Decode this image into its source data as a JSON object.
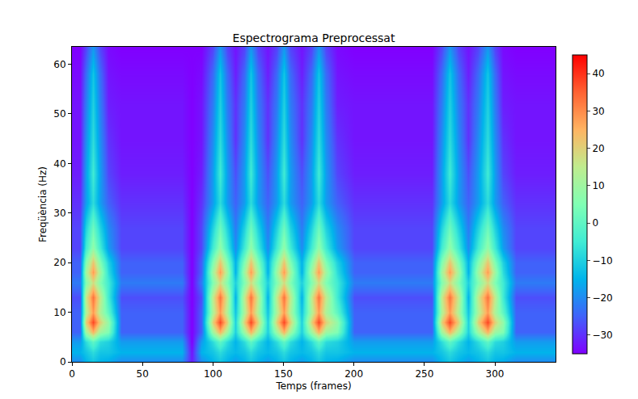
{
  "chart_data": {
    "type": "heatmap",
    "title": "Espectrograma Preprocessat",
    "x_label": "Temps (frames)",
    "y_label": "Freqüència (Hz)",
    "x": [
      0,
      6,
      10,
      15,
      20,
      26,
      35,
      50,
      65,
      78,
      85,
      92,
      100,
      105,
      110,
      116,
      122,
      127,
      132,
      139,
      145,
      150,
      155,
      163,
      170,
      175,
      180,
      188,
      200,
      220,
      240,
      255,
      262,
      268,
      274,
      281,
      288,
      295,
      300,
      306,
      315,
      325,
      340
    ],
    "y": [
      0,
      2,
      4,
      6,
      8,
      10,
      13,
      16,
      18,
      20,
      23,
      27,
      32,
      38,
      45,
      52,
      58,
      63
    ],
    "z": [
      [
        -20,
        -20,
        -15,
        -12,
        -15,
        -16,
        -20,
        -20,
        -20,
        -20,
        -32,
        -20,
        -15,
        -12,
        -15,
        -18,
        -15,
        -12,
        -15,
        -18,
        -15,
        -12,
        -15,
        -18,
        -15,
        -12,
        -15,
        -16,
        -20,
        -20,
        -20,
        -20,
        -15,
        -12,
        -15,
        -18,
        -15,
        -12,
        -15,
        -16,
        -20,
        -20,
        -20
      ],
      [
        -15,
        -15,
        -12,
        -8,
        -12,
        -12,
        -15,
        -15,
        -15,
        -15,
        -33,
        -15,
        -12,
        -8,
        -12,
        -14,
        -12,
        -8,
        -12,
        -14,
        -12,
        -8,
        -12,
        -14,
        -12,
        -8,
        -12,
        -12,
        -15,
        -15,
        -15,
        -15,
        -12,
        -8,
        -12,
        -14,
        -12,
        -8,
        -12,
        -12,
        -15,
        -15,
        -15
      ],
      [
        -18,
        -18,
        -8,
        0,
        -8,
        -10,
        -18,
        -18,
        -18,
        -18,
        -35,
        -18,
        -8,
        0,
        -8,
        -15,
        -8,
        0,
        -8,
        -15,
        -8,
        0,
        -8,
        -15,
        -8,
        0,
        -8,
        -10,
        -18,
        -18,
        -18,
        -18,
        -8,
        0,
        -8,
        -15,
        -8,
        0,
        -8,
        -10,
        -18,
        -18,
        -18
      ],
      [
        -25,
        -25,
        10,
        25,
        10,
        5,
        -25,
        -25,
        -25,
        -25,
        -35,
        -25,
        10,
        25,
        10,
        -10,
        10,
        25,
        10,
        -10,
        10,
        25,
        10,
        -10,
        10,
        25,
        10,
        5,
        -25,
        -25,
        -25,
        -25,
        10,
        25,
        10,
        -10,
        10,
        25,
        10,
        5,
        -25,
        -25,
        -25
      ],
      [
        -25,
        -25,
        20,
        38,
        20,
        8,
        -25,
        -25,
        -25,
        -25,
        -35,
        -25,
        20,
        38,
        20,
        -10,
        20,
        38,
        20,
        -10,
        20,
        38,
        20,
        -10,
        20,
        38,
        20,
        8,
        -25,
        -25,
        -25,
        -25,
        20,
        38,
        20,
        -10,
        20,
        38,
        20,
        8,
        -25,
        -25,
        -25
      ],
      [
        -25,
        -25,
        12,
        28,
        12,
        0,
        -25,
        -25,
        -25,
        -25,
        -35,
        -25,
        12,
        28,
        12,
        -12,
        12,
        28,
        12,
        -12,
        12,
        28,
        12,
        -12,
        12,
        28,
        12,
        0,
        -25,
        -25,
        -25,
        -25,
        12,
        28,
        12,
        -12,
        12,
        28,
        12,
        0,
        -25,
        -25,
        -25
      ],
      [
        -27,
        -27,
        15,
        33,
        15,
        -5,
        -27,
        -27,
        -27,
        -27,
        -35,
        -27,
        15,
        33,
        15,
        -15,
        15,
        33,
        15,
        -15,
        15,
        33,
        15,
        -15,
        15,
        33,
        15,
        -5,
        -27,
        -27,
        -27,
        -27,
        15,
        33,
        15,
        -15,
        15,
        33,
        15,
        -5,
        -27,
        -27,
        -27
      ],
      [
        -22,
        -22,
        5,
        18,
        5,
        -5,
        -22,
        -22,
        -22,
        -22,
        -35,
        -22,
        5,
        18,
        5,
        -10,
        5,
        18,
        5,
        -10,
        5,
        18,
        5,
        -10,
        5,
        18,
        5,
        -5,
        -22,
        -22,
        -22,
        -22,
        5,
        18,
        5,
        -10,
        5,
        18,
        5,
        -5,
        -22,
        -22,
        -22
      ],
      [
        -25,
        -25,
        10,
        28,
        10,
        -8,
        -25,
        -25,
        -25,
        -25,
        -35,
        -25,
        10,
        28,
        10,
        -15,
        10,
        28,
        10,
        -15,
        10,
        28,
        10,
        -15,
        10,
        28,
        10,
        -8,
        -25,
        -25,
        -25,
        -25,
        10,
        28,
        10,
        -15,
        10,
        28,
        10,
        -8,
        -25,
        -25,
        -25
      ],
      [
        -25,
        -25,
        5,
        22,
        5,
        -10,
        -25,
        -25,
        -25,
        -25,
        -35,
        -25,
        5,
        22,
        5,
        -15,
        5,
        22,
        5,
        -15,
        5,
        22,
        5,
        -15,
        5,
        22,
        5,
        -10,
        -25,
        -25,
        -25,
        -25,
        5,
        22,
        5,
        -15,
        5,
        22,
        5,
        -10,
        -25,
        -25,
        -25
      ],
      [
        -28,
        -28,
        -5,
        8,
        -5,
        -18,
        -28,
        -28,
        -28,
        -28,
        -35,
        -28,
        -5,
        8,
        -5,
        -20,
        -5,
        8,
        -5,
        -20,
        -5,
        8,
        -5,
        -20,
        -5,
        8,
        -5,
        -18,
        -28,
        -28,
        -28,
        -28,
        -5,
        8,
        -5,
        -20,
        -5,
        8,
        -5,
        -18,
        -28,
        -28,
        -28
      ],
      [
        -28,
        -28,
        -10,
        2,
        -10,
        -20,
        -28,
        -28,
        -28,
        -28,
        -35,
        -28,
        -10,
        2,
        -10,
        -22,
        -10,
        2,
        -10,
        -22,
        -10,
        2,
        -10,
        -22,
        -10,
        2,
        -10,
        -20,
        -28,
        -28,
        -28,
        -28,
        -10,
        2,
        -10,
        -22,
        -10,
        2,
        -10,
        -20,
        -28,
        -28,
        -28
      ],
      [
        -30,
        -30,
        -18,
        -8,
        -18,
        -25,
        -30,
        -30,
        -30,
        -30,
        -35,
        -30,
        -18,
        -8,
        -18,
        -25,
        -18,
        -8,
        -18,
        -25,
        -18,
        -8,
        -18,
        -25,
        -18,
        -8,
        -18,
        -25,
        -30,
        -30,
        -30,
        -30,
        -18,
        -8,
        -18,
        -25,
        -18,
        -8,
        -18,
        -25,
        -30,
        -30,
        -30
      ],
      [
        -32,
        -32,
        -18,
        -5,
        -18,
        -28,
        -32,
        -32,
        -32,
        -32,
        -35,
        -32,
        -18,
        -5,
        -18,
        -27,
        -18,
        -5,
        -18,
        -27,
        -18,
        -5,
        -18,
        -27,
        -18,
        -5,
        -18,
        -28,
        -32,
        -32,
        -32,
        -32,
        -18,
        -5,
        -18,
        -27,
        -18,
        -5,
        -18,
        -28,
        -32,
        -32,
        -32
      ],
      [
        -33,
        -33,
        -20,
        -8,
        -20,
        -30,
        -33,
        -33,
        -33,
        -33,
        -35,
        -33,
        -20,
        -8,
        -20,
        -30,
        -20,
        -8,
        -20,
        -30,
        -20,
        -8,
        -20,
        -30,
        -20,
        -8,
        -20,
        -30,
        -33,
        -33,
        -33,
        -33,
        -20,
        -8,
        -20,
        -30,
        -20,
        -8,
        -20,
        -30,
        -33,
        -33,
        -33
      ],
      [
        -33,
        -33,
        -22,
        -10,
        -22,
        -32,
        -33,
        -33,
        -33,
        -33,
        -35,
        -33,
        -22,
        -10,
        -22,
        -30,
        -22,
        -10,
        -22,
        -30,
        -22,
        -10,
        -22,
        -30,
        -22,
        -10,
        -22,
        -32,
        -33,
        -33,
        -33,
        -33,
        -22,
        -10,
        -22,
        -30,
        -22,
        -10,
        -22,
        -32,
        -33,
        -33,
        -33
      ],
      [
        -34,
        -34,
        -24,
        -12,
        -24,
        -33,
        -34,
        -34,
        -34,
        -34,
        -35,
        -34,
        -24,
        -12,
        -24,
        -32,
        -24,
        -12,
        -24,
        -32,
        -24,
        -12,
        -24,
        -32,
        -24,
        -12,
        -24,
        -33,
        -34,
        -34,
        -34,
        -34,
        -24,
        -12,
        -24,
        -32,
        -24,
        -12,
        -24,
        -33,
        -34,
        -34,
        -34
      ],
      [
        -35,
        -35,
        -28,
        -18,
        -28,
        -34,
        -35,
        -35,
        -35,
        -35,
        -35,
        -35,
        -28,
        -18,
        -28,
        -33,
        -28,
        -18,
        -28,
        -33,
        -28,
        -18,
        -28,
        -33,
        -28,
        -18,
        -28,
        -34,
        -35,
        -35,
        -35,
        -35,
        -28,
        -18,
        -28,
        -33,
        -28,
        -18,
        -28,
        -34,
        -35,
        -35,
        -35
      ]
    ],
    "xlim": [
      0,
      343
    ],
    "xticks": [
      0,
      50,
      100,
      150,
      200,
      250,
      300
    ],
    "ylim": [
      0,
      63.5
    ],
    "yticks": [
      0,
      10,
      20,
      30,
      40,
      50,
      60
    ],
    "color": "rainbow",
    "colorbar_range": [
      -35,
      45
    ],
    "colorbar_ticks": [
      -30,
      -20,
      -10,
      0,
      10,
      20,
      30,
      40
    ]
  }
}
